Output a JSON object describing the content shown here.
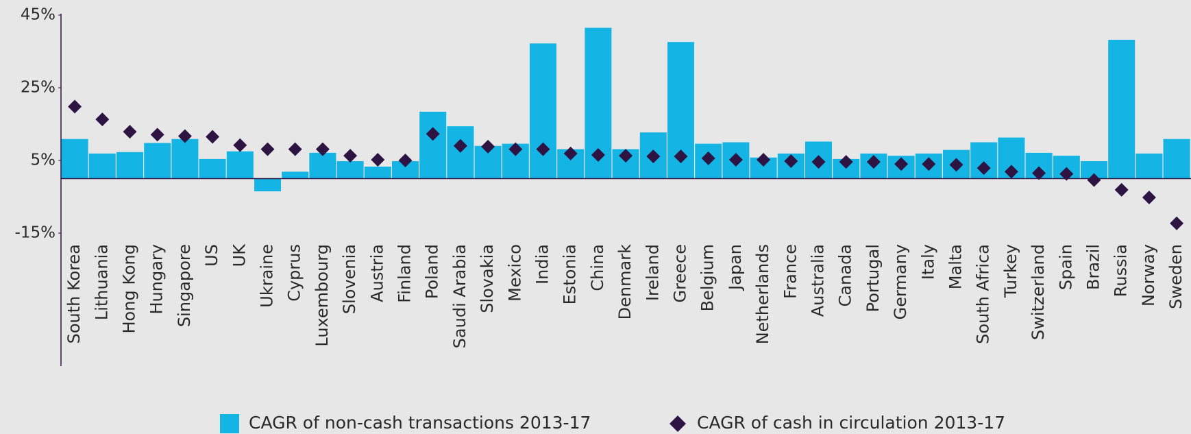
{
  "chart_data": {
    "type": "bar",
    "categories": [
      "South Korea",
      "Lithuania",
      "Hong Kong",
      "Hungary",
      "Singapore",
      "US",
      "UK",
      "Ukraine",
      "Cyprus",
      "Luxembourg",
      "Slovenia",
      "Austria",
      "Finland",
      "Poland",
      "Saudi Arabia",
      "Slovakia",
      "Mexico",
      "India",
      "Estonia",
      "China",
      "Denmark",
      "Ireland",
      "Greece",
      "Belgium",
      "Japan",
      "Netherlands",
      "France",
      "Australia",
      "Canada",
      "Portugal",
      "Germany",
      "Italy",
      "Malta",
      "South Africa",
      "Turkey",
      "Switzerland",
      "Spain",
      "Brazil",
      "Russia",
      "Norway",
      "Sweden"
    ],
    "series": [
      {
        "name": "CAGR of non-cash transactions 2013-17",
        "type": "bar",
        "color": "#14b4e4",
        "values": [
          10.9,
          6.9,
          7.3,
          9.8,
          10.9,
          5.4,
          7.5,
          -3.5,
          1.9,
          7.1,
          4.8,
          3.3,
          4.8,
          18.4,
          14.4,
          9.0,
          9.6,
          37.2,
          8.1,
          41.5,
          8.1,
          12.7,
          37.6,
          9.6,
          10.0,
          5.8,
          6.9,
          10.2,
          5.4,
          6.9,
          6.3,
          6.9,
          7.9,
          10.0,
          11.3,
          7.1,
          6.3,
          4.8,
          38.2,
          6.9,
          10.9
        ]
      },
      {
        "name": "CAGR of cash in circulation 2013-17",
        "type": "marker",
        "color": "#2d1443",
        "values": [
          19.8,
          16.3,
          12.9,
          12.1,
          11.7,
          11.5,
          9.2,
          8.1,
          8.1,
          8.1,
          6.3,
          5.2,
          5.0,
          12.3,
          9.0,
          8.8,
          8.1,
          8.1,
          6.9,
          6.5,
          6.3,
          6.1,
          6.1,
          5.6,
          5.2,
          5.2,
          4.8,
          4.6,
          4.6,
          4.6,
          4.0,
          4.0,
          3.8,
          2.9,
          1.9,
          1.5,
          1.3,
          -0.4,
          -3.1,
          -5.2,
          -12.3
        ]
      }
    ],
    "ylim": [
      -15,
      45
    ],
    "yticks": [
      {
        "value": 45,
        "label": "45%"
      },
      {
        "value": 25,
        "label": "25%"
      },
      {
        "value": 5,
        "label": "5%"
      },
      {
        "value": -15,
        "label": "-15%"
      }
    ],
    "grid": false,
    "legend": "bottom"
  }
}
